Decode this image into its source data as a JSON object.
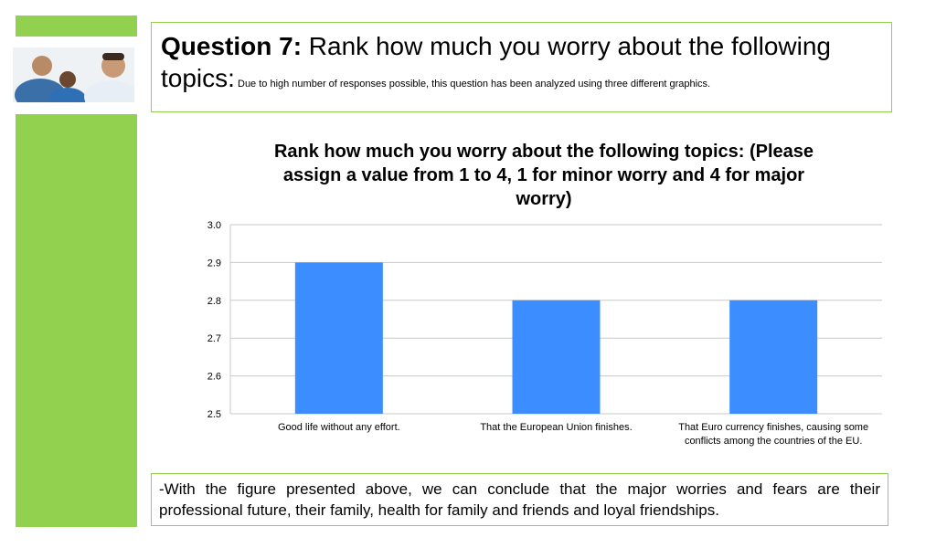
{
  "slide": {
    "question_number": "Question 7:",
    "question_text": " Rank how much you worry about the following topics:",
    "question_note": " Due to high number of responses possible, this question has been analyzed using three different graphics.",
    "conclusion": "-With the figure presented above, we can conclude that the major worries and fears are their professional future, their family, health for family and friends and loyal friendships.",
    "accent_color": "#92d050"
  },
  "chart_data": {
    "type": "bar",
    "title": "Rank how much you worry about the following topics: (Please assign a value from 1 to 4, 1 for minor worry and 4 for major worry)",
    "categories": [
      [
        "Good life without any effort."
      ],
      [
        "That the European Union finishes."
      ],
      [
        "That Euro currency finishes, causing some",
        "conflicts among the countries of the EU."
      ]
    ],
    "values": [
      2.9,
      2.8,
      2.8
    ],
    "ylim": [
      2.5,
      3.0
    ],
    "yticks": [
      3.0,
      2.9,
      2.8,
      2.7,
      2.6,
      2.5
    ],
    "ytick_labels": [
      "3.0",
      "2.9",
      "2.8",
      "2.7",
      "2.6",
      "2.5"
    ],
    "bar_color": "#3c8dff",
    "grid": true,
    "legend": "none"
  }
}
